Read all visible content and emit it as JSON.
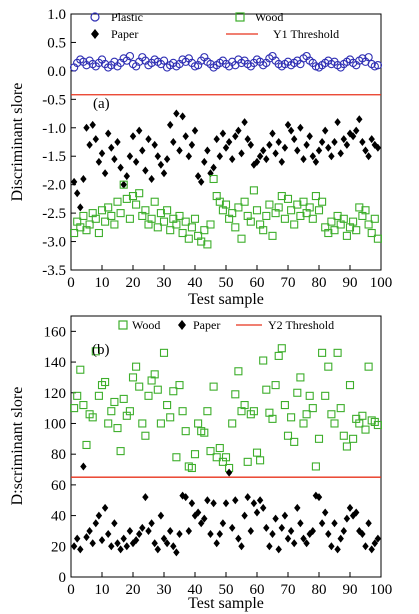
{
  "chart_data": [
    {
      "type": "scatter",
      "panel_label": "(a)",
      "xlabel": "Test sample",
      "ylabel": "Discriminant slore",
      "xlim": [
        0,
        100
      ],
      "ylim": [
        -3.5,
        1.0
      ],
      "x_ticks": [
        "0",
        "10",
        "20",
        "30",
        "40",
        "50",
        "60",
        "70",
        "80",
        "90",
        "100"
      ],
      "y_ticks": [
        "1.0",
        "0.5",
        "0.0",
        "-0.5",
        "-1.0",
        "-1.5",
        "-2.0",
        "-2.5",
        "-3.0",
        "-3.5"
      ],
      "threshold": {
        "name": "Y1 Threshold",
        "value": -0.42,
        "color": "#e8331c"
      },
      "series": [
        {
          "name": "Plastic",
          "marker": "circle-open",
          "color": "#2f2fb4",
          "x": [
            1,
            2,
            3,
            4,
            5,
            6,
            7,
            8,
            9,
            10,
            11,
            12,
            13,
            14,
            15,
            16,
            17,
            18,
            19,
            20,
            21,
            22,
            23,
            24,
            25,
            26,
            27,
            28,
            29,
            30,
            31,
            32,
            33,
            34,
            35,
            36,
            37,
            38,
            39,
            40,
            41,
            42,
            43,
            44,
            45,
            46,
            47,
            48,
            49,
            50,
            51,
            52,
            53,
            54,
            55,
            56,
            57,
            58,
            59,
            60,
            61,
            62,
            63,
            64,
            65,
            66,
            67,
            68,
            69,
            70,
            71,
            72,
            73,
            74,
            75,
            76,
            77,
            78,
            79,
            80,
            81,
            82,
            83,
            84,
            85,
            86,
            87,
            88,
            89,
            90,
            91,
            92,
            93,
            94,
            95,
            96,
            97,
            98,
            99
          ],
          "y": [
            0.06,
            0.14,
            0.2,
            0.16,
            0.1,
            0.18,
            0.12,
            0.08,
            0.14,
            0.2,
            0.12,
            0.06,
            0.1,
            0.16,
            0.08,
            0.14,
            0.22,
            0.18,
            0.26,
            0.12,
            0.08,
            0.16,
            0.24,
            0.18,
            0.1,
            0.14,
            0.2,
            0.16,
            0.12,
            0.18,
            0.06,
            0.1,
            0.14,
            0.08,
            0.12,
            0.2,
            0.16,
            0.22,
            0.14,
            0.08,
            0.1,
            0.18,
            0.24,
            0.16,
            0.12,
            0.06,
            0.1,
            0.14,
            0.18,
            0.12,
            0.08,
            0.16,
            0.1,
            0.2,
            0.14,
            0.18,
            0.12,
            0.08,
            0.14,
            0.2,
            0.16,
            0.1,
            0.14,
            0.22,
            0.26,
            0.18,
            0.12,
            0.08,
            0.12,
            0.16,
            0.1,
            0.14,
            0.18,
            0.12,
            0.22,
            0.26,
            0.18,
            0.14,
            0.08,
            0.06,
            0.1,
            0.14,
            0.18,
            0.12,
            0.16,
            0.1,
            0.06,
            0.12,
            0.16,
            0.2,
            0.14,
            0.1,
            0.18,
            0.22,
            0.16,
            0.24,
            0.12,
            0.08,
            0.1
          ]
        },
        {
          "name": "Paper",
          "marker": "diamond-filled",
          "color": "#000000",
          "x": [
            1,
            2,
            3,
            4,
            5,
            6,
            7,
            8,
            9,
            10,
            11,
            12,
            13,
            14,
            15,
            16,
            17,
            18,
            19,
            20,
            21,
            22,
            23,
            24,
            25,
            26,
            27,
            28,
            29,
            30,
            31,
            32,
            33,
            34,
            35,
            36,
            37,
            38,
            39,
            40,
            41,
            42,
            43,
            44,
            45,
            46,
            47,
            48,
            49,
            50,
            51,
            52,
            53,
            54,
            55,
            56,
            57,
            58,
            59,
            60,
            61,
            62,
            63,
            64,
            65,
            66,
            67,
            68,
            69,
            70,
            71,
            72,
            73,
            74,
            75,
            76,
            77,
            78,
            79,
            80,
            81,
            82,
            83,
            84,
            85,
            86,
            87,
            88,
            89,
            90,
            91,
            92,
            93,
            94,
            95,
            96,
            97,
            98,
            99
          ],
          "y": [
            -1.95,
            -2.15,
            -2.4,
            -1.9,
            -1.0,
            -1.3,
            -0.95,
            -1.2,
            -1.6,
            -1.45,
            -1.8,
            -1.1,
            -1.35,
            -1.55,
            -1.25,
            -1.7,
            -2.0,
            -1.85,
            -1.5,
            -1.15,
            -1.6,
            -1.05,
            -1.4,
            -1.75,
            -1.2,
            -1.9,
            -1.3,
            -1.5,
            -1.65,
            -1.8,
            -1.55,
            -0.95,
            -1.25,
            -0.75,
            -1.4,
            -0.8,
            -1.15,
            -1.5,
            -1.3,
            -1.05,
            -1.85,
            -1.95,
            -1.6,
            -1.4,
            -1.8,
            -1.7,
            -1.2,
            -1.5,
            -1.1,
            -1.35,
            -1.25,
            -1.55,
            -1.15,
            -1.05,
            -1.45,
            -0.9,
            -1.2,
            -1.3,
            -1.65,
            -1.6,
            -1.5,
            -1.4,
            -1.55,
            -1.3,
            -1.1,
            -1.45,
            -1.25,
            -1.6,
            -1.35,
            -0.95,
            -1.05,
            -1.2,
            -1.4,
            -1.0,
            -1.55,
            -1.3,
            -1.15,
            -1.5,
            -1.6,
            -1.4,
            -1.25,
            -1.05,
            -1.35,
            -1.5,
            -1.25,
            -0.9,
            -1.45,
            -1.2,
            -1.3,
            -1.1,
            -1.15,
            -1.05,
            -0.85,
            -1.25,
            -1.4,
            -1.5,
            -1.2,
            -1.3,
            -1.35
          ]
        },
        {
          "name": "Wood",
          "marker": "square-open",
          "color": "#3dae2b",
          "x": [
            1,
            2,
            3,
            4,
            5,
            6,
            7,
            8,
            9,
            10,
            11,
            12,
            13,
            14,
            15,
            16,
            17,
            18,
            19,
            20,
            21,
            22,
            23,
            24,
            25,
            26,
            27,
            28,
            29,
            30,
            31,
            32,
            33,
            34,
            35,
            36,
            37,
            38,
            39,
            40,
            41,
            42,
            43,
            44,
            45,
            46,
            47,
            48,
            49,
            50,
            51,
            52,
            53,
            54,
            55,
            56,
            57,
            58,
            59,
            60,
            61,
            62,
            63,
            64,
            65,
            66,
            67,
            68,
            69,
            70,
            71,
            72,
            73,
            74,
            75,
            76,
            77,
            78,
            79,
            80,
            81,
            82,
            83,
            84,
            85,
            86,
            87,
            88,
            89,
            90,
            91,
            92,
            93,
            94,
            95,
            96,
            97,
            98,
            99
          ],
          "y": [
            -2.85,
            -2.65,
            -2.75,
            -2.55,
            -2.8,
            -2.7,
            -2.5,
            -2.6,
            -2.85,
            -2.45,
            -2.65,
            -2.4,
            -2.55,
            -2.7,
            -2.3,
            -2.5,
            -2.0,
            -2.25,
            -2.6,
            -2.2,
            -2.35,
            -2.15,
            -2.55,
            -2.45,
            -2.7,
            -2.6,
            -2.3,
            -2.75,
            -2.5,
            -2.65,
            -2.45,
            -2.8,
            -2.6,
            -2.7,
            -2.55,
            -2.85,
            -2.65,
            -2.95,
            -2.75,
            -2.6,
            -2.9,
            -3.0,
            -2.8,
            -3.05,
            -2.7,
            -1.9,
            -2.2,
            -2.3,
            -2.45,
            -2.35,
            -2.6,
            -2.5,
            -2.75,
            -2.4,
            -2.95,
            -2.3,
            -2.55,
            -2.65,
            -2.1,
            -2.45,
            -2.7,
            -2.8,
            -2.55,
            -2.35,
            -2.9,
            -2.5,
            -2.4,
            -2.2,
            -2.6,
            -2.25,
            -2.45,
            -2.7,
            -2.35,
            -2.55,
            -2.3,
            -2.5,
            -2.4,
            -2.6,
            -2.2,
            -2.45,
            -2.3,
            -2.75,
            -2.85,
            -2.65,
            -2.8,
            -2.55,
            -2.7,
            -2.6,
            -2.9,
            -2.75,
            -2.65,
            -2.8,
            -2.4,
            -2.55,
            -2.45,
            -2.7,
            -2.85,
            -2.6,
            -2.95
          ]
        }
      ],
      "legend": [
        "Plastic",
        "Wood",
        "Paper",
        "Y1 Threshold"
      ]
    },
    {
      "type": "scatter",
      "panel_label": "(b)",
      "xlabel": "Test sample",
      "ylabel": "D:scriminant slore",
      "xlim": [
        0,
        100
      ],
      "ylim": [
        0,
        170
      ],
      "x_ticks": [
        "0",
        "10",
        "20",
        "30",
        "40",
        "50",
        "60",
        "70",
        "80",
        "90",
        "100"
      ],
      "y_ticks": [
        "0",
        "20",
        "40",
        "60",
        "80",
        "100",
        "120",
        "140",
        "160"
      ],
      "threshold": {
        "name": "Y2 Threshold",
        "value": 65,
        "color": "#e8331c"
      },
      "series": [
        {
          "name": "Wood",
          "marker": "square-open",
          "color": "#3dae2b",
          "x": [
            1,
            2,
            3,
            4,
            5,
            6,
            7,
            8,
            9,
            10,
            11,
            12,
            13,
            14,
            15,
            16,
            17,
            18,
            19,
            20,
            21,
            22,
            23,
            24,
            25,
            26,
            27,
            28,
            29,
            30,
            31,
            32,
            33,
            34,
            35,
            36,
            37,
            38,
            39,
            40,
            41,
            42,
            43,
            44,
            45,
            46,
            47,
            48,
            49,
            50,
            51,
            52,
            53,
            54,
            55,
            56,
            57,
            58,
            59,
            60,
            61,
            62,
            63,
            64,
            65,
            66,
            67,
            68,
            69,
            70,
            71,
            72,
            73,
            74,
            75,
            76,
            77,
            78,
            79,
            80,
            81,
            82,
            83,
            84,
            85,
            86,
            87,
            88,
            89,
            90,
            91,
            92,
            93,
            94,
            95,
            96,
            97,
            98,
            99
          ],
          "y": [
            110,
            118,
            135,
            112,
            86,
            106,
            104,
            147,
            118,
            125,
            127,
            100,
            108,
            114,
            97,
            82,
            116,
            105,
            108,
            130,
            137,
            124,
            100,
            92,
            118,
            128,
            132,
            122,
            100,
            146,
            112,
            104,
            121,
            78,
            125,
            108,
            95,
            72,
            71,
            80,
            100,
            95,
            94,
            108,
            82,
            124,
            78,
            84,
            75,
            78,
            71,
            100,
            119,
            134,
            108,
            112,
            75,
            106,
            108,
            81,
            76,
            141,
            122,
            107,
            103,
            125,
            144,
            149,
            112,
            92,
            104,
            88,
            120,
            130,
            100,
            106,
            118,
            110,
            72,
            90,
            146,
            118,
            137,
            106,
            100,
            146,
            110,
            92,
            85,
            125,
            90,
            103,
            100,
            105,
            96,
            137,
            102,
            101,
            99
          ]
        },
        {
          "name": "Paper",
          "marker": "diamond-filled",
          "color": "#000000",
          "x": [
            1,
            2,
            3,
            4,
            5,
            6,
            7,
            8,
            9,
            10,
            11,
            12,
            13,
            14,
            15,
            16,
            17,
            18,
            19,
            20,
            21,
            22,
            23,
            24,
            25,
            26,
            27,
            28,
            29,
            30,
            31,
            32,
            33,
            34,
            35,
            36,
            37,
            38,
            39,
            40,
            41,
            42,
            43,
            44,
            45,
            46,
            47,
            48,
            49,
            50,
            51,
            52,
            53,
            54,
            55,
            56,
            57,
            58,
            59,
            60,
            61,
            62,
            63,
            64,
            65,
            66,
            67,
            68,
            69,
            70,
            71,
            72,
            73,
            74,
            75,
            76,
            77,
            78,
            79,
            80,
            81,
            82,
            83,
            84,
            85,
            86,
            87,
            88,
            89,
            90,
            91,
            92,
            93,
            94,
            95,
            96,
            97,
            98,
            99
          ],
          "y": [
            20,
            25,
            18,
            72,
            26,
            30,
            22,
            35,
            40,
            24,
            45,
            28,
            20,
            35,
            22,
            18,
            25,
            20,
            30,
            22,
            24,
            28,
            32,
            52,
            30,
            35,
            22,
            18,
            40,
            25,
            22,
            30,
            20,
            16,
            28,
            53,
            52,
            30,
            48,
            40,
            42,
            35,
            38,
            50,
            28,
            48,
            22,
            28,
            35,
            48,
            68,
            32,
            50,
            25,
            20,
            40,
            52,
            30,
            48,
            42,
            50,
            45,
            32,
            20,
            28,
            38,
            18,
            32,
            40,
            25,
            30,
            22,
            45,
            35,
            25,
            22,
            28,
            30,
            53,
            52,
            35,
            42,
            28,
            20,
            35,
            18,
            25,
            30,
            38,
            45,
            40,
            42,
            30,
            28,
            20,
            35,
            18,
            22,
            25
          ]
        }
      ],
      "legend": [
        "Wood",
        "Paper",
        "Y2 Threshold"
      ]
    }
  ]
}
